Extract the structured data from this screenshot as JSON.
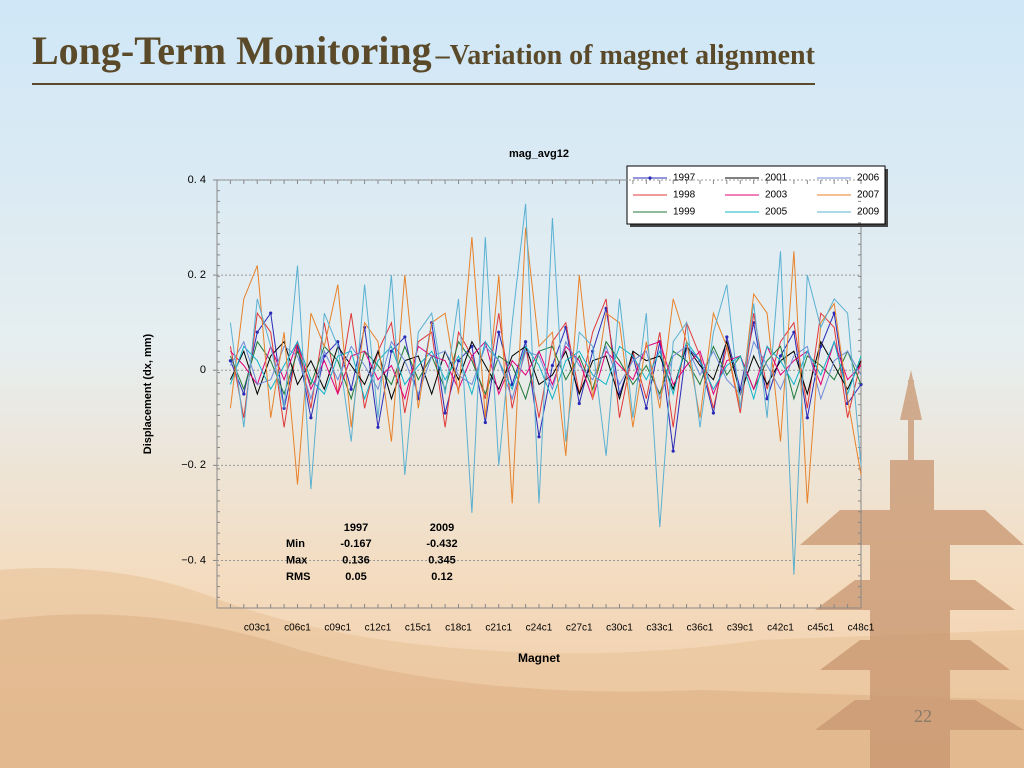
{
  "slide": {
    "title": "Long-Term Monitoring",
    "subtitle": "–Variation of magnet alignment",
    "page_number": "22"
  },
  "chart_data": {
    "type": "line",
    "title": "mag_avg12",
    "x_label": "Magnet",
    "y_label": "Displacement (dx, mm)",
    "categories": [
      null,
      null,
      "c03c1",
      null,
      null,
      "c06c1",
      null,
      null,
      "c09c1",
      null,
      null,
      "c12c1",
      null,
      null,
      "c15c1",
      null,
      null,
      "c18c1",
      null,
      null,
      "c21c1",
      null,
      null,
      "c24c1",
      null,
      null,
      "c27c1",
      null,
      null,
      "c30c1",
      null,
      null,
      "c33c1",
      null,
      null,
      "c36c1",
      null,
      null,
      "c39c1",
      null,
      null,
      "c42c1",
      null,
      null,
      "c45c1",
      null,
      null,
      "c48c1"
    ],
    "ylim": [
      -0.5,
      0.4
    ],
    "yticks": [
      {
        "value": 0.4,
        "label": "0. 4"
      },
      {
        "value": 0.2,
        "label": "0. 2"
      },
      0,
      {
        "value": -0.2,
        "label": "−0. 2"
      },
      {
        "value": -0.4,
        "label": "−0. 4"
      }
    ],
    "grid": true,
    "legend_position": "upper right",
    "series": [
      {
        "name": "1997",
        "color": "#2a2ab8",
        "markers": true,
        "values": [
          0.02,
          -0.05,
          0.08,
          0.12,
          -0.08,
          0.05,
          -0.1,
          0.03,
          0.06,
          -0.04,
          0.09,
          -0.12,
          0.04,
          0.07,
          -0.06,
          0.1,
          -0.09,
          0.02,
          0.05,
          -0.11,
          0.08,
          -0.03,
          0.06,
          -0.14,
          0.01,
          0.09,
          -0.07,
          0.04,
          0.13,
          -0.05,
          0.03,
          -0.08,
          0.06,
          -0.17,
          0.05,
          0.02,
          -0.09,
          0.07,
          -0.04,
          0.1,
          -0.06,
          0.03,
          0.08,
          -0.1,
          0.05,
          0.12,
          -0.07,
          -0.03
        ]
      },
      {
        "name": "1998",
        "color": "#e03838",
        "values": [
          0.05,
          -0.1,
          0.12,
          0.08,
          -0.12,
          0.06,
          -0.08,
          0.1,
          -0.05,
          0.12,
          -0.08,
          0.04,
          0.1,
          -0.09,
          0.06,
          0.08,
          -0.12,
          0.08,
          0.03,
          -0.06,
          0.12,
          -0.08,
          0.05,
          -0.1,
          0.06,
          0.1,
          -0.05,
          0.08,
          0.15,
          -0.1,
          0.04,
          -0.06,
          0.08,
          -0.12,
          0.1,
          0.03,
          -0.08,
          0.05,
          -0.09,
          0.12,
          -0.04,
          0.06,
          0.1,
          -0.08,
          0.12,
          0.09,
          -0.1,
          0.02
        ]
      },
      {
        "name": "1999",
        "color": "#207a3a",
        "values": [
          0.03,
          -0.04,
          0.06,
          0.02,
          -0.05,
          0.04,
          -0.03,
          0.05,
          0.02,
          -0.06,
          0.04,
          0.01,
          -0.03,
          0.05,
          -0.02,
          0.03,
          -0.04,
          0.06,
          0.02,
          -0.05,
          0.03,
          0.01,
          -0.06,
          0.04,
          0.05,
          -0.02,
          0.03,
          -0.04,
          0.06,
          0.02,
          -0.03,
          0.01,
          -0.05,
          0.04,
          0.02,
          -0.03,
          0.05,
          -0.01,
          0.03,
          -0.04,
          0.02,
          0.05,
          -0.06,
          0.03,
          0.01,
          -0.02,
          0.04,
          -0.03
        ]
      },
      {
        "name": "2001",
        "color": "#000000",
        "values": [
          -0.02,
          0.04,
          -0.05,
          0.03,
          0.06,
          -0.03,
          0.02,
          -0.04,
          0.05,
          0.01,
          -0.03,
          0.04,
          -0.06,
          0.02,
          0.03,
          -0.05,
          0.04,
          -0.02,
          0.06,
          0.01,
          -0.04,
          0.03,
          0.05,
          -0.03,
          -0.01,
          0.04,
          -0.05,
          0.02,
          0.03,
          -0.06,
          0.04,
          0.02,
          0.03,
          -0.04,
          0.05,
          0.01,
          -0.02,
          0.06,
          -0.05,
          0.03,
          -0.03,
          0.02,
          0.04,
          -0.05,
          0.06,
          0.01,
          -0.04,
          0.02
        ]
      },
      {
        "name": "2003",
        "color": "#e0007a",
        "values": [
          0.04,
          0.01,
          -0.03,
          0.05,
          -0.02,
          0.06,
          -0.04,
          0.02,
          -0.05,
          0.03,
          0.04,
          -0.02,
          0.01,
          -0.06,
          0.05,
          0.03,
          0.02,
          -0.04,
          0.03,
          0.06,
          -0.05,
          0.02,
          -0.01,
          0.04,
          -0.03,
          0.05,
          0.02,
          -0.06,
          0.04,
          0.01,
          -0.02,
          0.05,
          0.06,
          -0.03,
          0.01,
          0.04,
          -0.05,
          0.02,
          0.03,
          -0.04,
          0.05,
          -0.01,
          0.02,
          0.04,
          -0.03,
          0.06,
          -0.02,
          0.01
        ]
      },
      {
        "name": "2005",
        "color": "#10b4c8",
        "values": [
          -0.03,
          0.05,
          0.02,
          -0.04,
          0.01,
          0.06,
          -0.02,
          -0.05,
          0.03,
          0.04,
          -0.06,
          0.02,
          0.05,
          -0.03,
          0.01,
          0.04,
          -0.02,
          0.03,
          -0.05,
          0.06,
          0.02,
          -0.04,
          0.05,
          0.01,
          -0.06,
          0.02,
          0.04,
          -0.01,
          -0.03,
          0.05,
          0.03,
          -0.02,
          0.04,
          -0.05,
          0.06,
          0.02,
          -0.04,
          0.01,
          0.03,
          -0.06,
          0.05,
          0.02,
          -0.03,
          0.04,
          -0.01,
          0.06,
          -0.05,
          0.03
        ]
      },
      {
        "name": "2006",
        "color": "#6f8ad8",
        "values": [
          0.01,
          0.06,
          -0.03,
          -0.02,
          0.05,
          0.03,
          -0.06,
          0.04,
          -0.02,
          0.05,
          0.01,
          -0.04,
          0.06,
          0.02,
          -0.05,
          0.03,
          0.04,
          -0.01,
          -0.03,
          0.05,
          0.02,
          -0.06,
          0.04,
          0.03,
          -0.04,
          0.06,
          0.01,
          -0.02,
          0.05,
          -0.03,
          0.02,
          0.04,
          -0.06,
          0.03,
          0.05,
          -0.01,
          0.04,
          -0.02,
          -0.05,
          0.06,
          0.01,
          -0.04,
          0.03,
          0.05,
          -0.06,
          0.02,
          0.04,
          -0.01
        ]
      },
      {
        "name": "2007",
        "color": "#e8822a",
        "values": [
          -0.08,
          0.15,
          0.22,
          -0.1,
          0.08,
          -0.24,
          0.12,
          0.05,
          0.18,
          -0.12,
          0.1,
          0.06,
          -0.15,
          0.2,
          -0.08,
          0.1,
          0.12,
          -0.05,
          0.28,
          -0.1,
          0.2,
          -0.28,
          0.3,
          0.05,
          0.08,
          -0.18,
          0.2,
          -0.06,
          0.12,
          0.1,
          -0.12,
          0.06,
          -0.08,
          0.15,
          0.06,
          -0.1,
          0.12,
          0.05,
          -0.08,
          0.16,
          0.12,
          -0.15,
          0.25,
          -0.28,
          0.1,
          0.14,
          -0.06,
          -0.22
        ]
      },
      {
        "name": "2009",
        "color": "#5ab0d2",
        "values": [
          0.1,
          -0.12,
          0.15,
          0.05,
          -0.08,
          0.22,
          -0.25,
          0.12,
          0.05,
          -0.15,
          0.18,
          -0.1,
          0.2,
          -0.22,
          0.08,
          0.12,
          -0.05,
          0.15,
          -0.3,
          0.28,
          -0.2,
          0.1,
          0.35,
          -0.28,
          0.32,
          -0.15,
          0.08,
          0.05,
          -0.18,
          0.15,
          -0.1,
          0.12,
          -0.33,
          0.06,
          0.1,
          -0.12,
          0.08,
          0.18,
          -0.08,
          0.14,
          -0.1,
          0.25,
          -0.43,
          0.2,
          0.09,
          0.15,
          0.12,
          -0.2
        ]
      }
    ],
    "stats_table": {
      "columns": [
        "1997",
        "2009"
      ],
      "rows": [
        {
          "label": "Min",
          "values": [
            -0.167,
            -0.432
          ]
        },
        {
          "label": "Max",
          "values": [
            0.136,
            0.345
          ]
        },
        {
          "label": "RMS",
          "values": [
            0.05,
            0.12
          ]
        }
      ]
    }
  }
}
